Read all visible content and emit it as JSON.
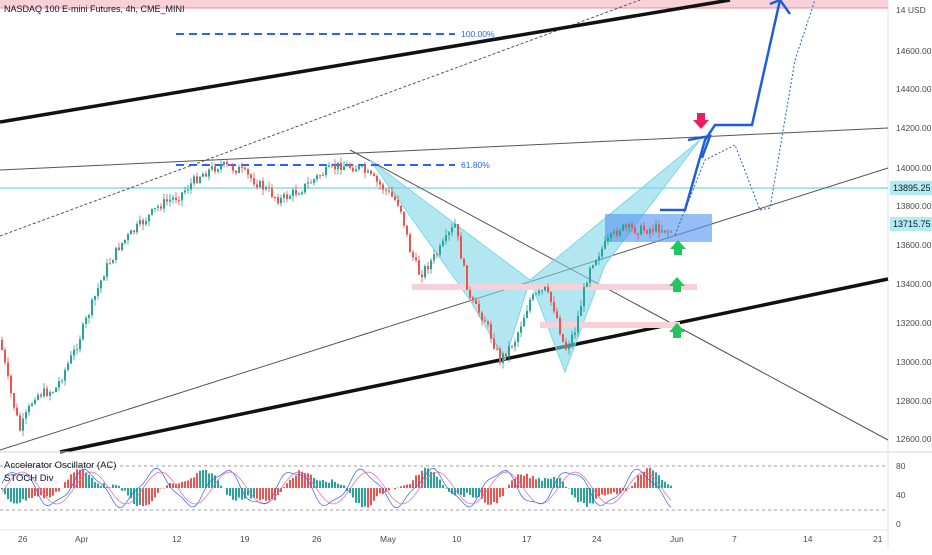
{
  "chart_title": "NASDAQ 100 E-mini Futures, 4h, CME_MINI",
  "price_axis": {
    "ticks": [
      "14 USD",
      "14600.00",
      "14400.00",
      "14200.00",
      "14000.00",
      "13800.00",
      "13600.00",
      "13400.00",
      "13200.00",
      "13000.00",
      "12800.00",
      "12600.00"
    ]
  },
  "price_badges": {
    "upper": "13895.25",
    "current": "13715.75"
  },
  "fib_levels": {
    "top": "100.00%",
    "mid": "61.80%"
  },
  "indicators": {
    "ac_label": "Accelerator Oscillator (AC)",
    "stoch_label": "STOCH Div",
    "ticks": [
      "80",
      "40",
      "0"
    ]
  },
  "date_axis": {
    "ticks": [
      "26",
      "Apr",
      "12",
      "19",
      "26",
      "May",
      "10",
      "17",
      "24",
      "Jun",
      "7",
      "14",
      "21"
    ]
  },
  "colors": {
    "pattern_fill": "#7fd6e6",
    "bullish": "#26a69a",
    "bearish": "#ef5350",
    "projection": "#1e5fd9",
    "resistance_band": "#f8d0d8",
    "up_arrow": "#22c55e",
    "down_arrow": "#e91e63"
  },
  "icons": {
    "up_arrow": "up-arrow-icon",
    "down_arrow": "down-arrow-icon"
  }
}
